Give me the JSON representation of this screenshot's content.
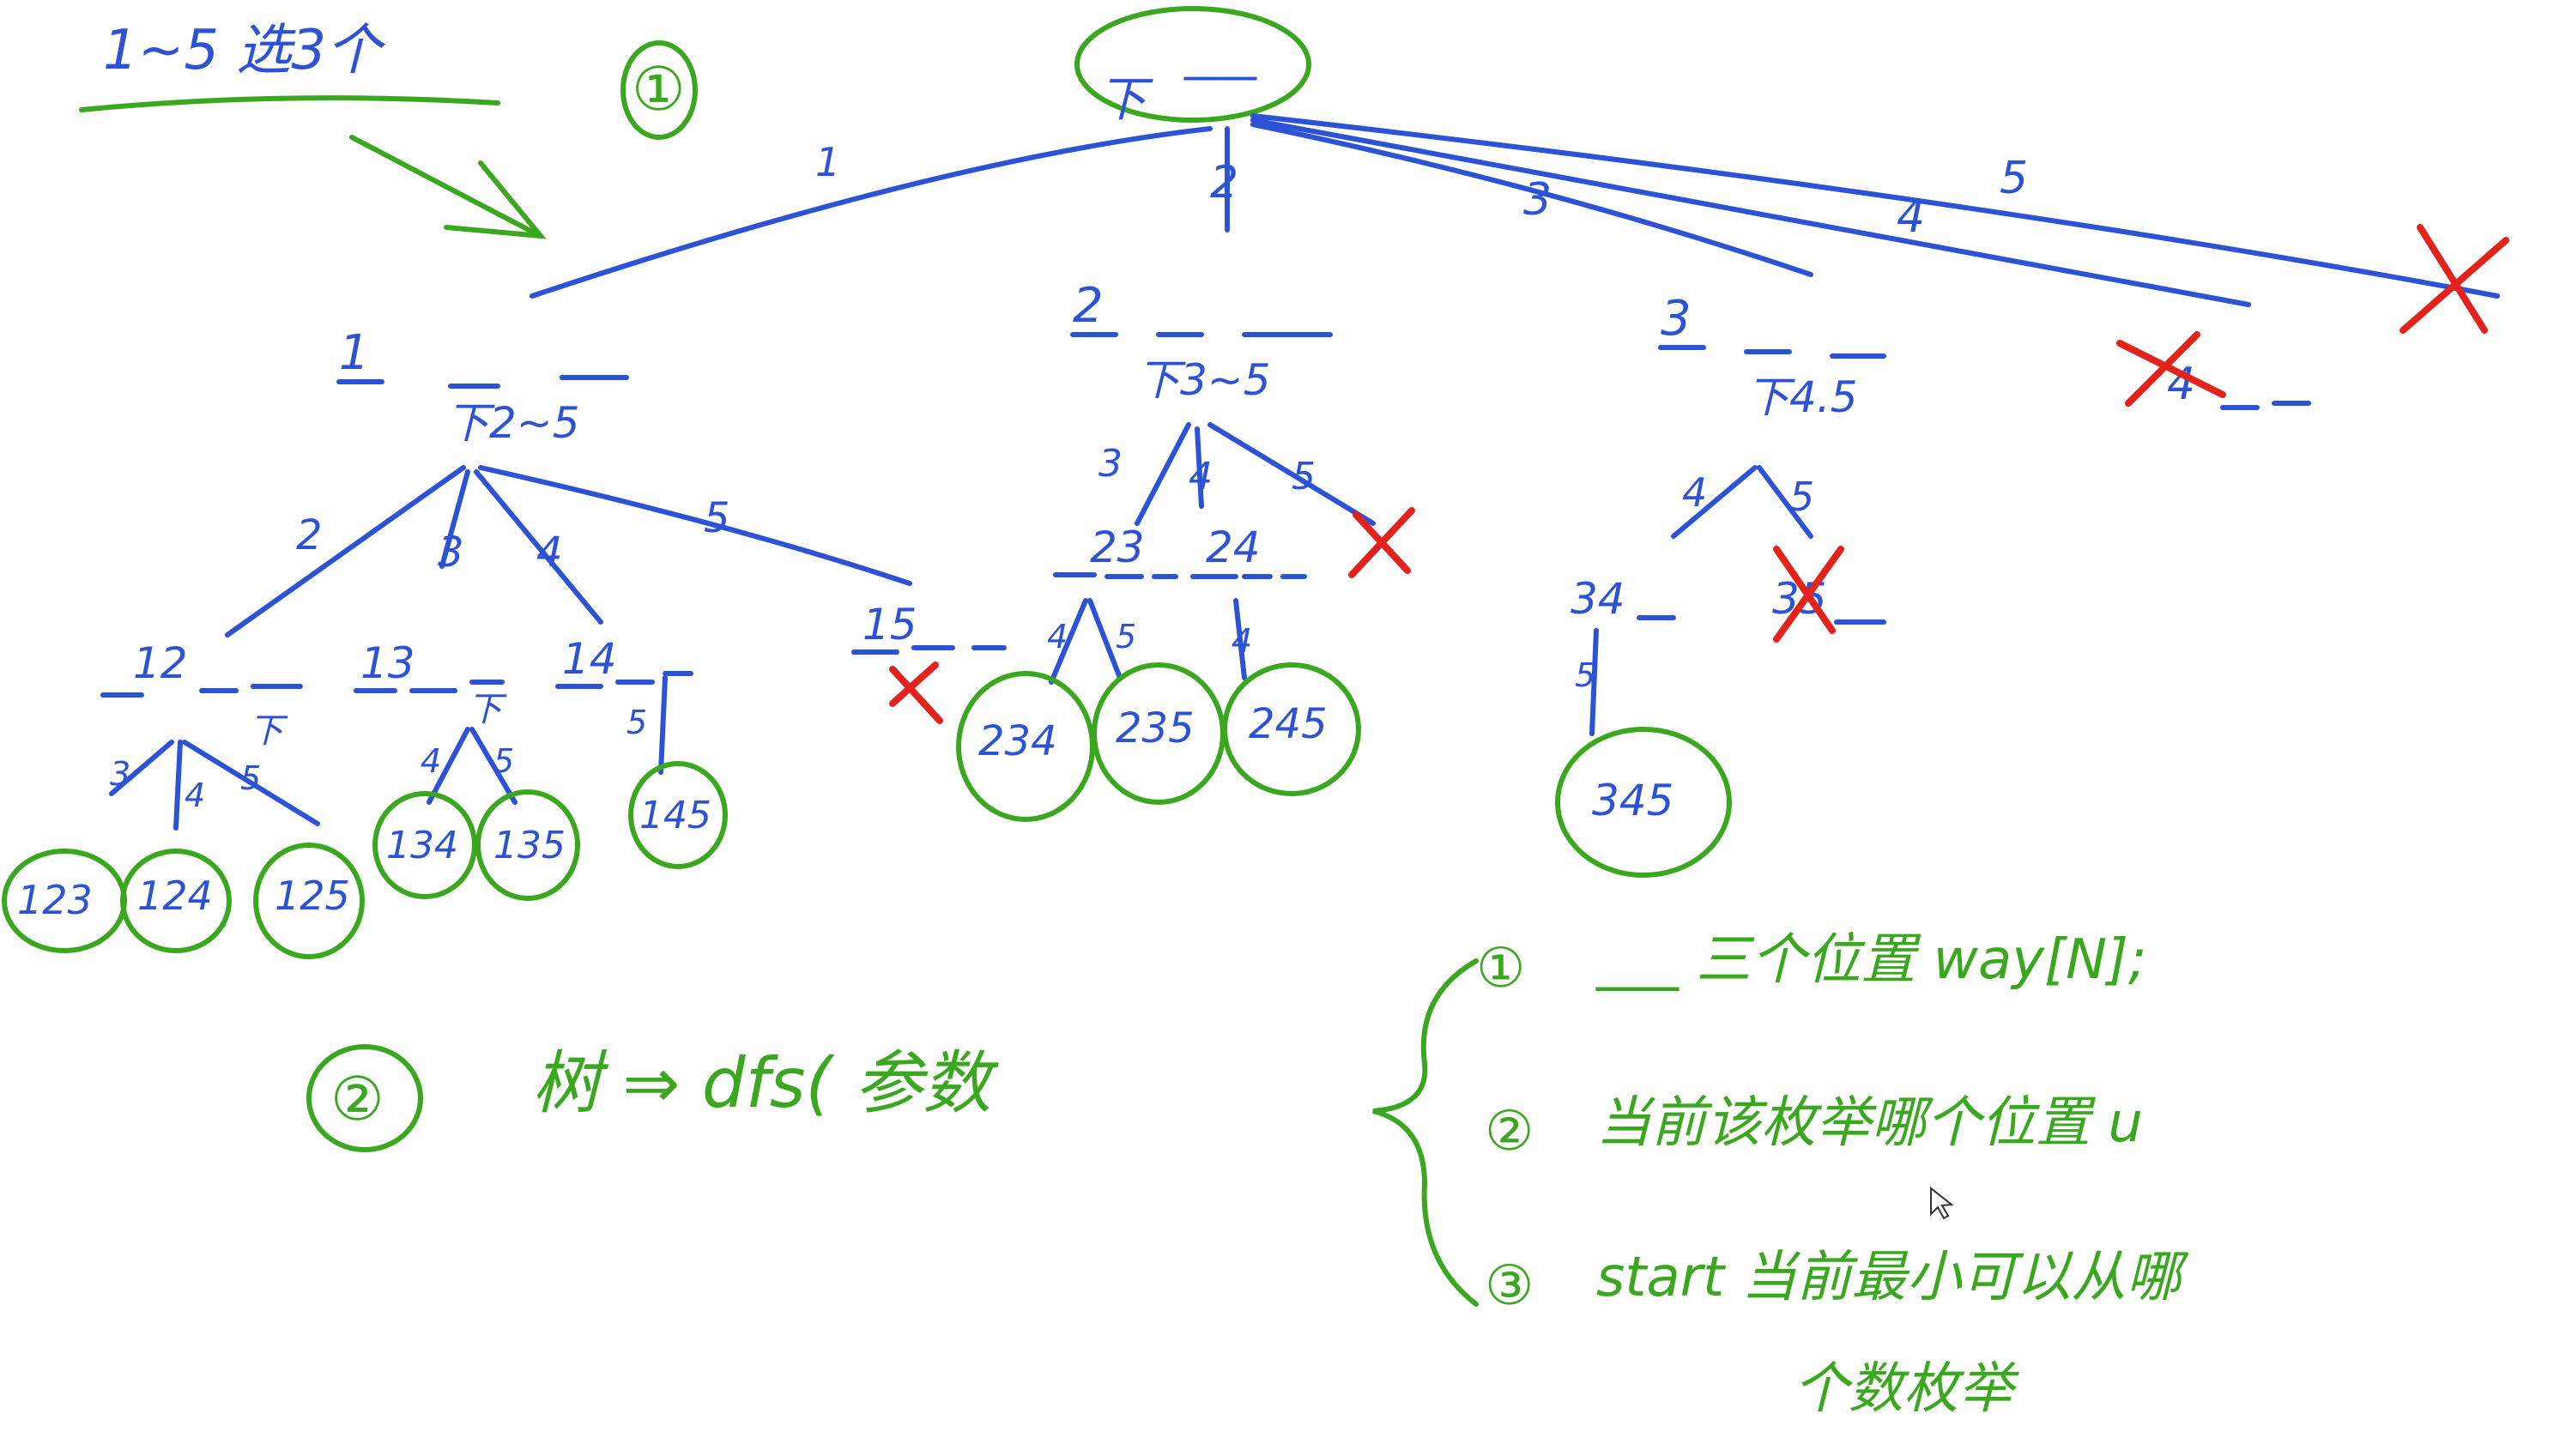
{
  "header": {
    "title": "1~5 选3个",
    "step1_marker": "①"
  },
  "tree": {
    "root": {
      "slots": "___",
      "label": "下"
    },
    "edge_labels_top": [
      "1",
      "2",
      "3",
      "4",
      "5"
    ],
    "level1": [
      {
        "head": "1",
        "sub": "下2~5"
      },
      {
        "head": "2",
        "sub": "下3~5"
      },
      {
        "head": "3",
        "sub": "下4.5"
      },
      {
        "head": "4",
        "sub": ""
      }
    ],
    "level1_edges_under_1": [
      "2",
      "3",
      "4",
      "5"
    ],
    "level1_edges_under_2": [
      "3",
      "4",
      "5"
    ],
    "level1_edges_under_3": [
      "4",
      "5"
    ],
    "level2": [
      {
        "head": "12",
        "sub": "下"
      },
      {
        "head": "13",
        "sub": "下"
      },
      {
        "head": "14",
        "sub": ""
      },
      {
        "head": "15",
        "sub": ""
      },
      {
        "head": "23",
        "sub": ""
      },
      {
        "head": "24",
        "sub": ""
      },
      {
        "head": "34",
        "sub": ""
      },
      {
        "head": "35",
        "sub": ""
      }
    ],
    "level2_edges": [
      "3",
      "4",
      "5",
      "4",
      "5",
      "5",
      "4",
      "5",
      "4",
      "5"
    ],
    "results": [
      "123",
      "124",
      "125",
      "134",
      "135",
      "145",
      "234",
      "235",
      "245",
      "345"
    ]
  },
  "notes": {
    "step2_marker": "②",
    "step2_text": "树 ⇒ dfs( 参数",
    "param1_marker": "①",
    "param1_text": "___ 三个位置 way[N];",
    "param2_marker": "②",
    "param2_text": "当前该枚举哪个位置  u",
    "param3_marker": "③",
    "param3_text_line1": "start  当前最小可以从哪",
    "param3_text_line2": "个数枚举"
  },
  "colors": {
    "pen_blue": "#2c52d6",
    "pen_green": "#3aa81e",
    "pen_red": "#e3221c"
  }
}
